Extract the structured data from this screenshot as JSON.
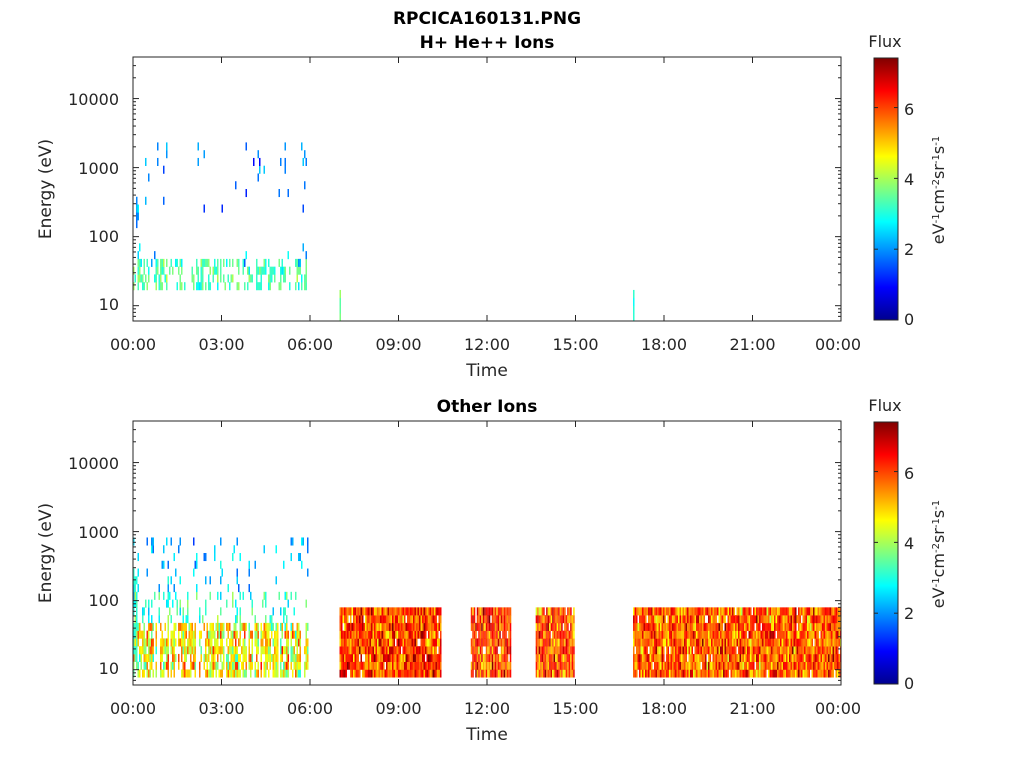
{
  "figure_title": "RPCICA160131.PNG",
  "chart_data": [
    {
      "type": "heatmap",
      "title": "H+ He++ Ions",
      "xlabel": "Time",
      "ylabel": "Energy (eV)",
      "x_ticks": [
        "00:00",
        "03:00",
        "06:00",
        "09:00",
        "12:00",
        "15:00",
        "18:00",
        "21:00",
        "00:00"
      ],
      "x_range_hours": [
        0,
        24
      ],
      "y_scale": "log",
      "y_range": [
        6,
        40000
      ],
      "y_ticks": [
        {
          "value": 10,
          "label": "10"
        },
        {
          "value": 100,
          "label": "100"
        },
        {
          "value": 1000,
          "label": "1000"
        },
        {
          "value": 10000,
          "label": "10000"
        }
      ],
      "colorbar": {
        "label": "Flux",
        "units_base": [
          "eV",
          "cm",
          "sr",
          "s"
        ],
        "units_exp": [
          "-1",
          "-2",
          "-1",
          "-1"
        ],
        "range": [
          0,
          7.4
        ],
        "ticks": [
          "0",
          "2",
          "4",
          "6"
        ],
        "colormap": "jet"
      },
      "data_regions": [
        {
          "t0": 0.0,
          "t1": 5.9,
          "e0": 15,
          "e1": 45,
          "level": 3.4,
          "density": 0.55,
          "spread": 0.6
        },
        {
          "t0": 0.0,
          "t1": 5.9,
          "e0": 40,
          "e1": 80,
          "level": 2.3,
          "density": 0.12,
          "spread": 0.5
        },
        {
          "t0": 0.0,
          "t1": 5.9,
          "e0": 200,
          "e1": 2500,
          "level": 1.8,
          "density": 0.12,
          "spread": 0.7
        },
        {
          "t0": 0.0,
          "t1": 0.2,
          "e0": 80,
          "e1": 400,
          "level": 2.2,
          "density": 0.5,
          "spread": 0.6
        },
        {
          "t0": 7.0,
          "t1": 7.05,
          "e0": 6,
          "e1": 18,
          "level": 3.5,
          "density": 1.0,
          "spread": 0.3
        },
        {
          "t0": 16.95,
          "t1": 17.0,
          "e0": 6,
          "e1": 18,
          "level": 3.0,
          "density": 1.0,
          "spread": 0.3
        }
      ]
    },
    {
      "type": "heatmap",
      "title": "Other Ions",
      "xlabel": "Time",
      "ylabel": "Energy (eV)",
      "x_ticks": [
        "00:00",
        "03:00",
        "06:00",
        "09:00",
        "12:00",
        "15:00",
        "18:00",
        "21:00",
        "00:00"
      ],
      "x_range_hours": [
        0,
        24
      ],
      "y_scale": "log",
      "y_range": [
        6,
        40000
      ],
      "y_ticks": [
        {
          "value": 10,
          "label": "10"
        },
        {
          "value": 100,
          "label": "100"
        },
        {
          "value": 1000,
          "label": "1000"
        },
        {
          "value": 10000,
          "label": "10000"
        }
      ],
      "colorbar": {
        "label": "Flux",
        "units_base": [
          "eV",
          "cm",
          "sr",
          "s"
        ],
        "units_exp": [
          "-1",
          "-2",
          "-1",
          "-1"
        ],
        "range": [
          0,
          7.4
        ],
        "ticks": [
          "0",
          "2",
          "4",
          "6"
        ],
        "colormap": "jet"
      },
      "data_regions": [
        {
          "t0": 0.0,
          "t1": 5.9,
          "e0": 7,
          "e1": 45,
          "level": 4.6,
          "density": 0.75,
          "spread": 1.3
        },
        {
          "t0": 0.0,
          "t1": 5.9,
          "e0": 45,
          "e1": 120,
          "level": 3.2,
          "density": 0.35,
          "spread": 0.8
        },
        {
          "t0": 0.0,
          "t1": 5.9,
          "e0": 120,
          "e1": 800,
          "level": 2.3,
          "density": 0.2,
          "spread": 0.8
        },
        {
          "t0": 0.0,
          "t1": 0.15,
          "e0": 10,
          "e1": 200,
          "level": 3.2,
          "density": 0.8,
          "spread": 0.8
        },
        {
          "t0": 7.0,
          "t1": 10.45,
          "e0": 7,
          "e1": 80,
          "level": 6.0,
          "density": 0.97,
          "spread": 1.1
        },
        {
          "t0": 11.45,
          "t1": 12.8,
          "e0": 7,
          "e1": 80,
          "level": 6.0,
          "density": 0.97,
          "spread": 1.1
        },
        {
          "t0": 13.65,
          "t1": 14.95,
          "e0": 7,
          "e1": 80,
          "level": 5.9,
          "density": 0.97,
          "spread": 1.1
        },
        {
          "t0": 16.95,
          "t1": 24.0,
          "e0": 7,
          "e1": 80,
          "level": 5.8,
          "density": 0.97,
          "spread": 1.1
        }
      ]
    }
  ]
}
